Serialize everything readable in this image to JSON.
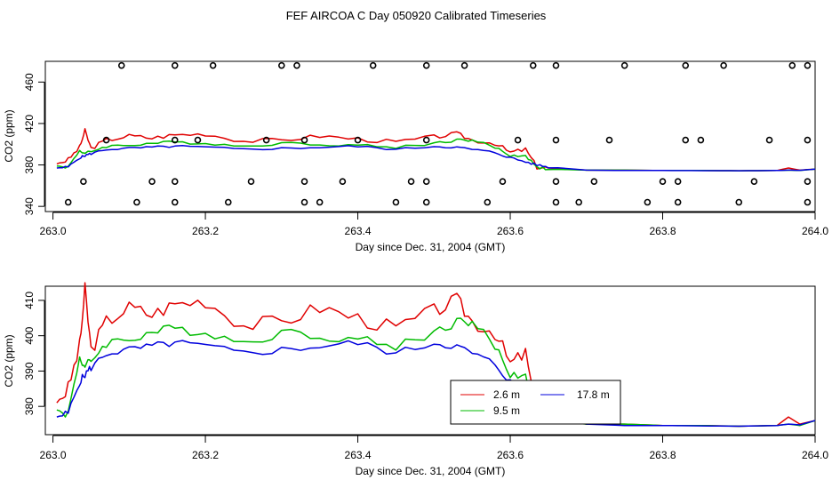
{
  "page_title": "FEF AIRCOA C  Day 050920  Calibrated Timeseries",
  "colors": {
    "h2_6": "#e00000",
    "h9_5": "#00bb00",
    "h17_8": "#0000dd",
    "frame": "#000000"
  },
  "chart_data": [
    {
      "type": "line",
      "panel": "top",
      "title": "",
      "xlabel": "Day since Dec. 31, 2004 (GMT)",
      "ylabel": "CO2 (ppm)",
      "xlim": [
        262.99,
        264.0
      ],
      "ylim": [
        335,
        480
      ],
      "x_ticks": [
        "263.0",
        "263.2",
        "263.4",
        "263.6",
        "263.8",
        "264.0"
      ],
      "x_tick_values": [
        263.0,
        263.2,
        263.4,
        263.6,
        263.8,
        264.0
      ],
      "y_ticks": [
        "340",
        "380",
        "420",
        "460"
      ],
      "y_tick_values": [
        340,
        380,
        420,
        460
      ],
      "flag_markers": {
        "description": "open circle flag markers at four levels",
        "levels": [
          {
            "y": 476,
            "x": [
              263.09,
              263.16,
              263.21,
              263.3,
              263.32,
              263.42,
              263.49,
              263.54,
              263.63,
              263.66,
              263.75,
              263.83,
              263.88,
              263.97,
              263.99
            ]
          },
          {
            "y": 404,
            "x": [
              263.07,
              263.16,
              263.19,
              263.28,
              263.33,
              263.4,
              263.49,
              263.61,
              263.66,
              263.73,
              263.83,
              263.85,
              263.94,
              263.99
            ]
          },
          {
            "y": 364,
            "x": [
              263.04,
              263.13,
              263.16,
              263.26,
              263.33,
              263.38,
              263.47,
              263.49,
              263.59,
              263.66,
              263.71,
              263.8,
              263.82,
              263.92,
              263.99
            ]
          },
          {
            "y": 344,
            "x": [
              263.02,
              263.11,
              263.16,
              263.23,
              263.33,
              263.35,
              263.45,
              263.49,
              263.57,
              263.66,
              263.69,
              263.78,
              263.82,
              263.9,
              263.99
            ]
          }
        ]
      }
    },
    {
      "type": "line",
      "panel": "bottom",
      "title": "",
      "xlabel": "Day since Dec. 31, 2004 (GMT)",
      "ylabel": "CO2 (ppm)",
      "xlim": [
        262.99,
        264.0
      ],
      "ylim": [
        372,
        414
      ],
      "x_ticks": [
        "263.0",
        "263.2",
        "263.4",
        "263.6",
        "263.8",
        "264.0"
      ],
      "x_tick_values": [
        263.0,
        263.2,
        263.4,
        263.6,
        263.8,
        264.0
      ],
      "y_ticks": [
        "380",
        "390",
        "400",
        "410"
      ],
      "y_tick_values": [
        380,
        390,
        400,
        410
      ],
      "legend": {
        "placement": "bottom-center",
        "entries": [
          "2.6 m",
          "9.5 m",
          "17.8 m"
        ]
      }
    }
  ],
  "series_def": [
    {
      "name": "2.6 m",
      "color_key": "h2_6"
    },
    {
      "name": "9.5 m",
      "color_key": "h9_5"
    },
    {
      "name": "17.8 m",
      "color_key": "h17_8"
    }
  ],
  "series_x": [
    263.005,
    263.02,
    263.035,
    263.042,
    263.05,
    263.07,
    263.1,
    263.13,
    263.16,
    263.2,
    263.25,
    263.3,
    263.35,
    263.4,
    263.45,
    263.5,
    263.53,
    263.55,
    263.58,
    263.6,
    263.62,
    263.635,
    263.65,
    263.7,
    263.75,
    263.8,
    263.85,
    263.9,
    263.95,
    263.965,
    263.98,
    264.0
  ],
  "series_values": {
    "2.6 m": [
      381,
      385,
      397,
      413,
      396,
      404,
      408,
      406,
      409,
      410,
      403,
      404,
      408,
      405,
      402,
      407,
      410,
      404,
      401,
      392,
      395,
      378,
      377,
      375,
      375,
      374.6,
      374.6,
      374.4,
      374.6,
      377,
      375,
      376
    ],
    "9.5 m": [
      379,
      378,
      394,
      391,
      393,
      398,
      399,
      401,
      402,
      401,
      398,
      401,
      400,
      399,
      397,
      401,
      404,
      404,
      397,
      389,
      389,
      378,
      376,
      375,
      375,
      374.6,
      374.6,
      374.4,
      374.6,
      375,
      374.6,
      376
    ],
    "17.8 m": [
      377,
      378,
      387,
      389,
      391,
      395,
      396,
      397,
      398,
      397,
      395,
      396,
      397,
      398,
      395,
      398,
      397,
      395,
      392,
      387,
      383,
      380,
      378,
      375,
      374.6,
      374.6,
      374.5,
      374.4,
      374.6,
      375,
      374.8,
      376
    ]
  }
}
